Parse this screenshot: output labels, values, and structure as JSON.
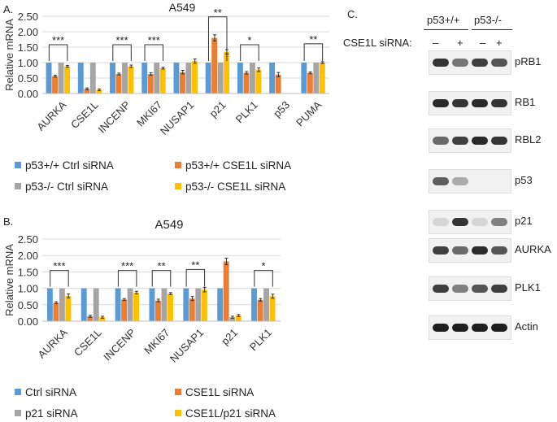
{
  "panels": {
    "a": {
      "letter": "A.",
      "title": "A549"
    },
    "b": {
      "letter": "B.",
      "title": "A549"
    },
    "c": {
      "letter": "C."
    }
  },
  "chart_data": [
    {
      "type": "bar",
      "title": "A549",
      "ylabel": "Relative mRNA",
      "ylim": [
        0,
        2.5
      ],
      "yticks": [
        "0.00",
        "0.50",
        "1.00",
        "1.50",
        "2.00",
        "2.50"
      ],
      "categories": [
        "AURKA",
        "CSE1L",
        "INCENP",
        "MKI67",
        "NUSAP1",
        "p21",
        "PLK1",
        "p53",
        "PUMA"
      ],
      "series": [
        {
          "name": "p53+/+ Ctrl siRNA",
          "color": "#5b9bd5",
          "values": [
            1.0,
            1.0,
            1.0,
            1.0,
            1.0,
            1.0,
            1.0,
            1.0,
            1.0
          ]
        },
        {
          "name": "p53+/+ CSE1L siRNA",
          "color": "#ed7d31",
          "values": [
            0.56,
            0.15,
            0.63,
            0.63,
            0.69,
            1.8,
            0.67,
            0.61,
            0.67
          ]
        },
        {
          "name": "p53-/- Ctrl siRNA",
          "color": "#a5a5a5",
          "values": [
            1.0,
            1.0,
            1.0,
            1.0,
            1.0,
            1.0,
            1.0,
            0.0,
            1.0
          ]
        },
        {
          "name": "p53-/- CSE1L siRNA",
          "color": "#ffc000",
          "values": [
            0.88,
            0.12,
            0.88,
            0.82,
            1.05,
            1.35,
            0.77,
            0.0,
            1.0
          ]
        }
      ],
      "errors": [
        [
          0,
          0,
          0,
          0,
          0,
          0,
          0,
          0,
          0
        ],
        [
          0.03,
          0.03,
          0.03,
          0.04,
          0.06,
          0.1,
          0.04,
          0.07,
          0.03
        ],
        [
          0,
          0,
          0,
          0,
          0,
          0,
          0,
          0,
          0
        ],
        [
          0.03,
          0.03,
          0.04,
          0.03,
          0.07,
          0.07,
          0.06,
          0,
          0.03
        ]
      ],
      "significance": [
        {
          "category": "AURKA",
          "label": "***"
        },
        {
          "category": "INCENP",
          "label": "***"
        },
        {
          "category": "MKI67",
          "label": "***"
        },
        {
          "category": "p21",
          "label": "**"
        },
        {
          "category": "PLK1",
          "label": "*"
        },
        {
          "category": "PUMA",
          "label": "**"
        }
      ]
    },
    {
      "type": "bar",
      "title": "A549",
      "ylabel": "Relative mRNA",
      "ylim": [
        0,
        2.5
      ],
      "yticks": [
        "0.00",
        "0.50",
        "1.00",
        "1.50",
        "2.00",
        "2.50"
      ],
      "categories": [
        "AURKA",
        "CSE1L",
        "INCENP",
        "MKI67",
        "NUSAP1",
        "p21",
        "PLK1"
      ],
      "series": [
        {
          "name": "Ctrl siRNA",
          "color": "#5b9bd5",
          "values": [
            1.0,
            1.0,
            1.0,
            1.0,
            1.0,
            1.0,
            1.0
          ]
        },
        {
          "name": "CSE1L siRNA",
          "color": "#ed7d31",
          "values": [
            0.56,
            0.15,
            0.66,
            0.63,
            0.69,
            1.82,
            0.65
          ]
        },
        {
          "name": "p21 siRNA",
          "color": "#a5a5a5",
          "values": [
            1.0,
            1.0,
            1.0,
            1.0,
            1.0,
            0.12,
            1.0
          ]
        },
        {
          "name": "CSE1L/p21 siRNA",
          "color": "#ffc000",
          "values": [
            0.77,
            0.12,
            0.87,
            0.84,
            0.96,
            0.17,
            0.76
          ]
        }
      ],
      "errors": [
        [
          0,
          0,
          0,
          0,
          0,
          0,
          0
        ],
        [
          0.03,
          0.03,
          0.03,
          0.04,
          0.06,
          0.1,
          0.04
        ],
        [
          0,
          0,
          0,
          0,
          0,
          0.03,
          0
        ],
        [
          0.06,
          0.03,
          0.04,
          0.03,
          0.07,
          0.03,
          0.06
        ]
      ],
      "significance": [
        {
          "category": "AURKA",
          "label": "***"
        },
        {
          "category": "INCENP",
          "label": "***"
        },
        {
          "category": "MKI67",
          "label": "**"
        },
        {
          "category": "NUSAP1",
          "label": "**"
        },
        {
          "category": "PLK1",
          "label": "*"
        }
      ]
    }
  ],
  "western_blot": {
    "group_labels": [
      "p53+/+",
      "p53-/-"
    ],
    "treatment_label": "CSE1L siRNA:",
    "lane_marks": [
      "–",
      "+",
      "–",
      "+"
    ],
    "bands": [
      {
        "name": "pRB1",
        "intensity": [
          0.85,
          0.55,
          0.8,
          0.7
        ]
      },
      {
        "name": "RB1",
        "intensity": [
          0.9,
          0.85,
          0.9,
          0.85
        ]
      },
      {
        "name": "RBL2",
        "intensity": [
          0.6,
          0.8,
          0.9,
          0.85
        ]
      },
      {
        "name": "p53",
        "intensity": [
          0.65,
          0.3,
          0.0,
          0.0
        ]
      },
      {
        "name": "p21",
        "intensity": [
          0.1,
          0.85,
          0.1,
          0.5
        ]
      },
      {
        "name": "AURKA",
        "intensity": [
          0.8,
          0.6,
          0.9,
          0.7
        ]
      },
      {
        "name": "PLK1",
        "intensity": [
          0.8,
          0.5,
          0.7,
          0.8
        ]
      },
      {
        "name": "Actin",
        "intensity": [
          0.95,
          0.95,
          0.95,
          0.95
        ]
      }
    ]
  }
}
